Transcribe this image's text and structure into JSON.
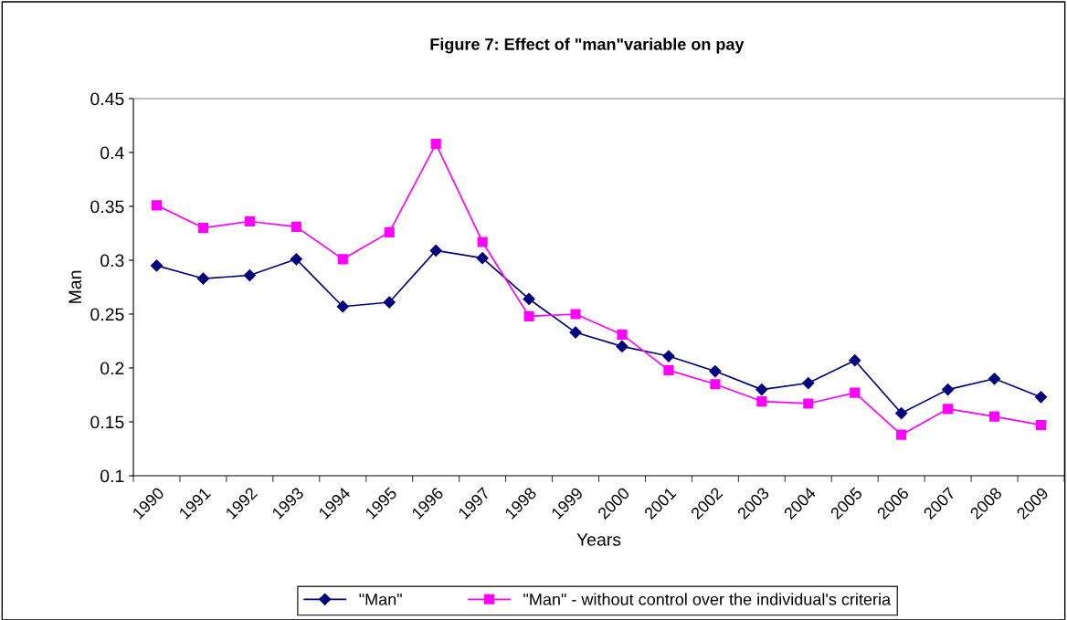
{
  "chart_data": {
    "type": "line",
    "title": "Figure 7: Effect of \"man\"variable on pay",
    "xlabel": "Years",
    "ylabel": "Man",
    "categories": [
      "1990",
      "1991",
      "1992",
      "1993",
      "1994",
      "1995",
      "1996",
      "1997",
      "1998",
      "1999",
      "2000",
      "2001",
      "2002",
      "2003",
      "2004",
      "2005",
      "2006",
      "2007",
      "2008",
      "2009"
    ],
    "series": [
      {
        "name": "\"Man\"",
        "color": "#000080",
        "marker": "diamond",
        "values": [
          0.295,
          0.283,
          0.286,
          0.301,
          0.257,
          0.261,
          0.309,
          0.302,
          0.264,
          0.233,
          0.22,
          0.211,
          0.197,
          0.18,
          0.186,
          0.207,
          0.158,
          0.18,
          0.19,
          0.173
        ]
      },
      {
        "name": "\"Man\" - without control over the individual's criteria",
        "color": "#ff00ff",
        "marker": "square",
        "values": [
          0.351,
          0.33,
          0.336,
          0.331,
          0.301,
          0.326,
          0.408,
          0.317,
          0.248,
          0.25,
          0.231,
          0.198,
          0.185,
          0.169,
          0.167,
          0.177,
          0.138,
          0.162,
          0.155,
          0.147
        ]
      }
    ],
    "ylim": [
      0.1,
      0.45
    ],
    "yticks": [
      0.1,
      0.15,
      0.2,
      0.25,
      0.3,
      0.35,
      0.4,
      0.45
    ],
    "grid": false,
    "legend": "bottom"
  }
}
